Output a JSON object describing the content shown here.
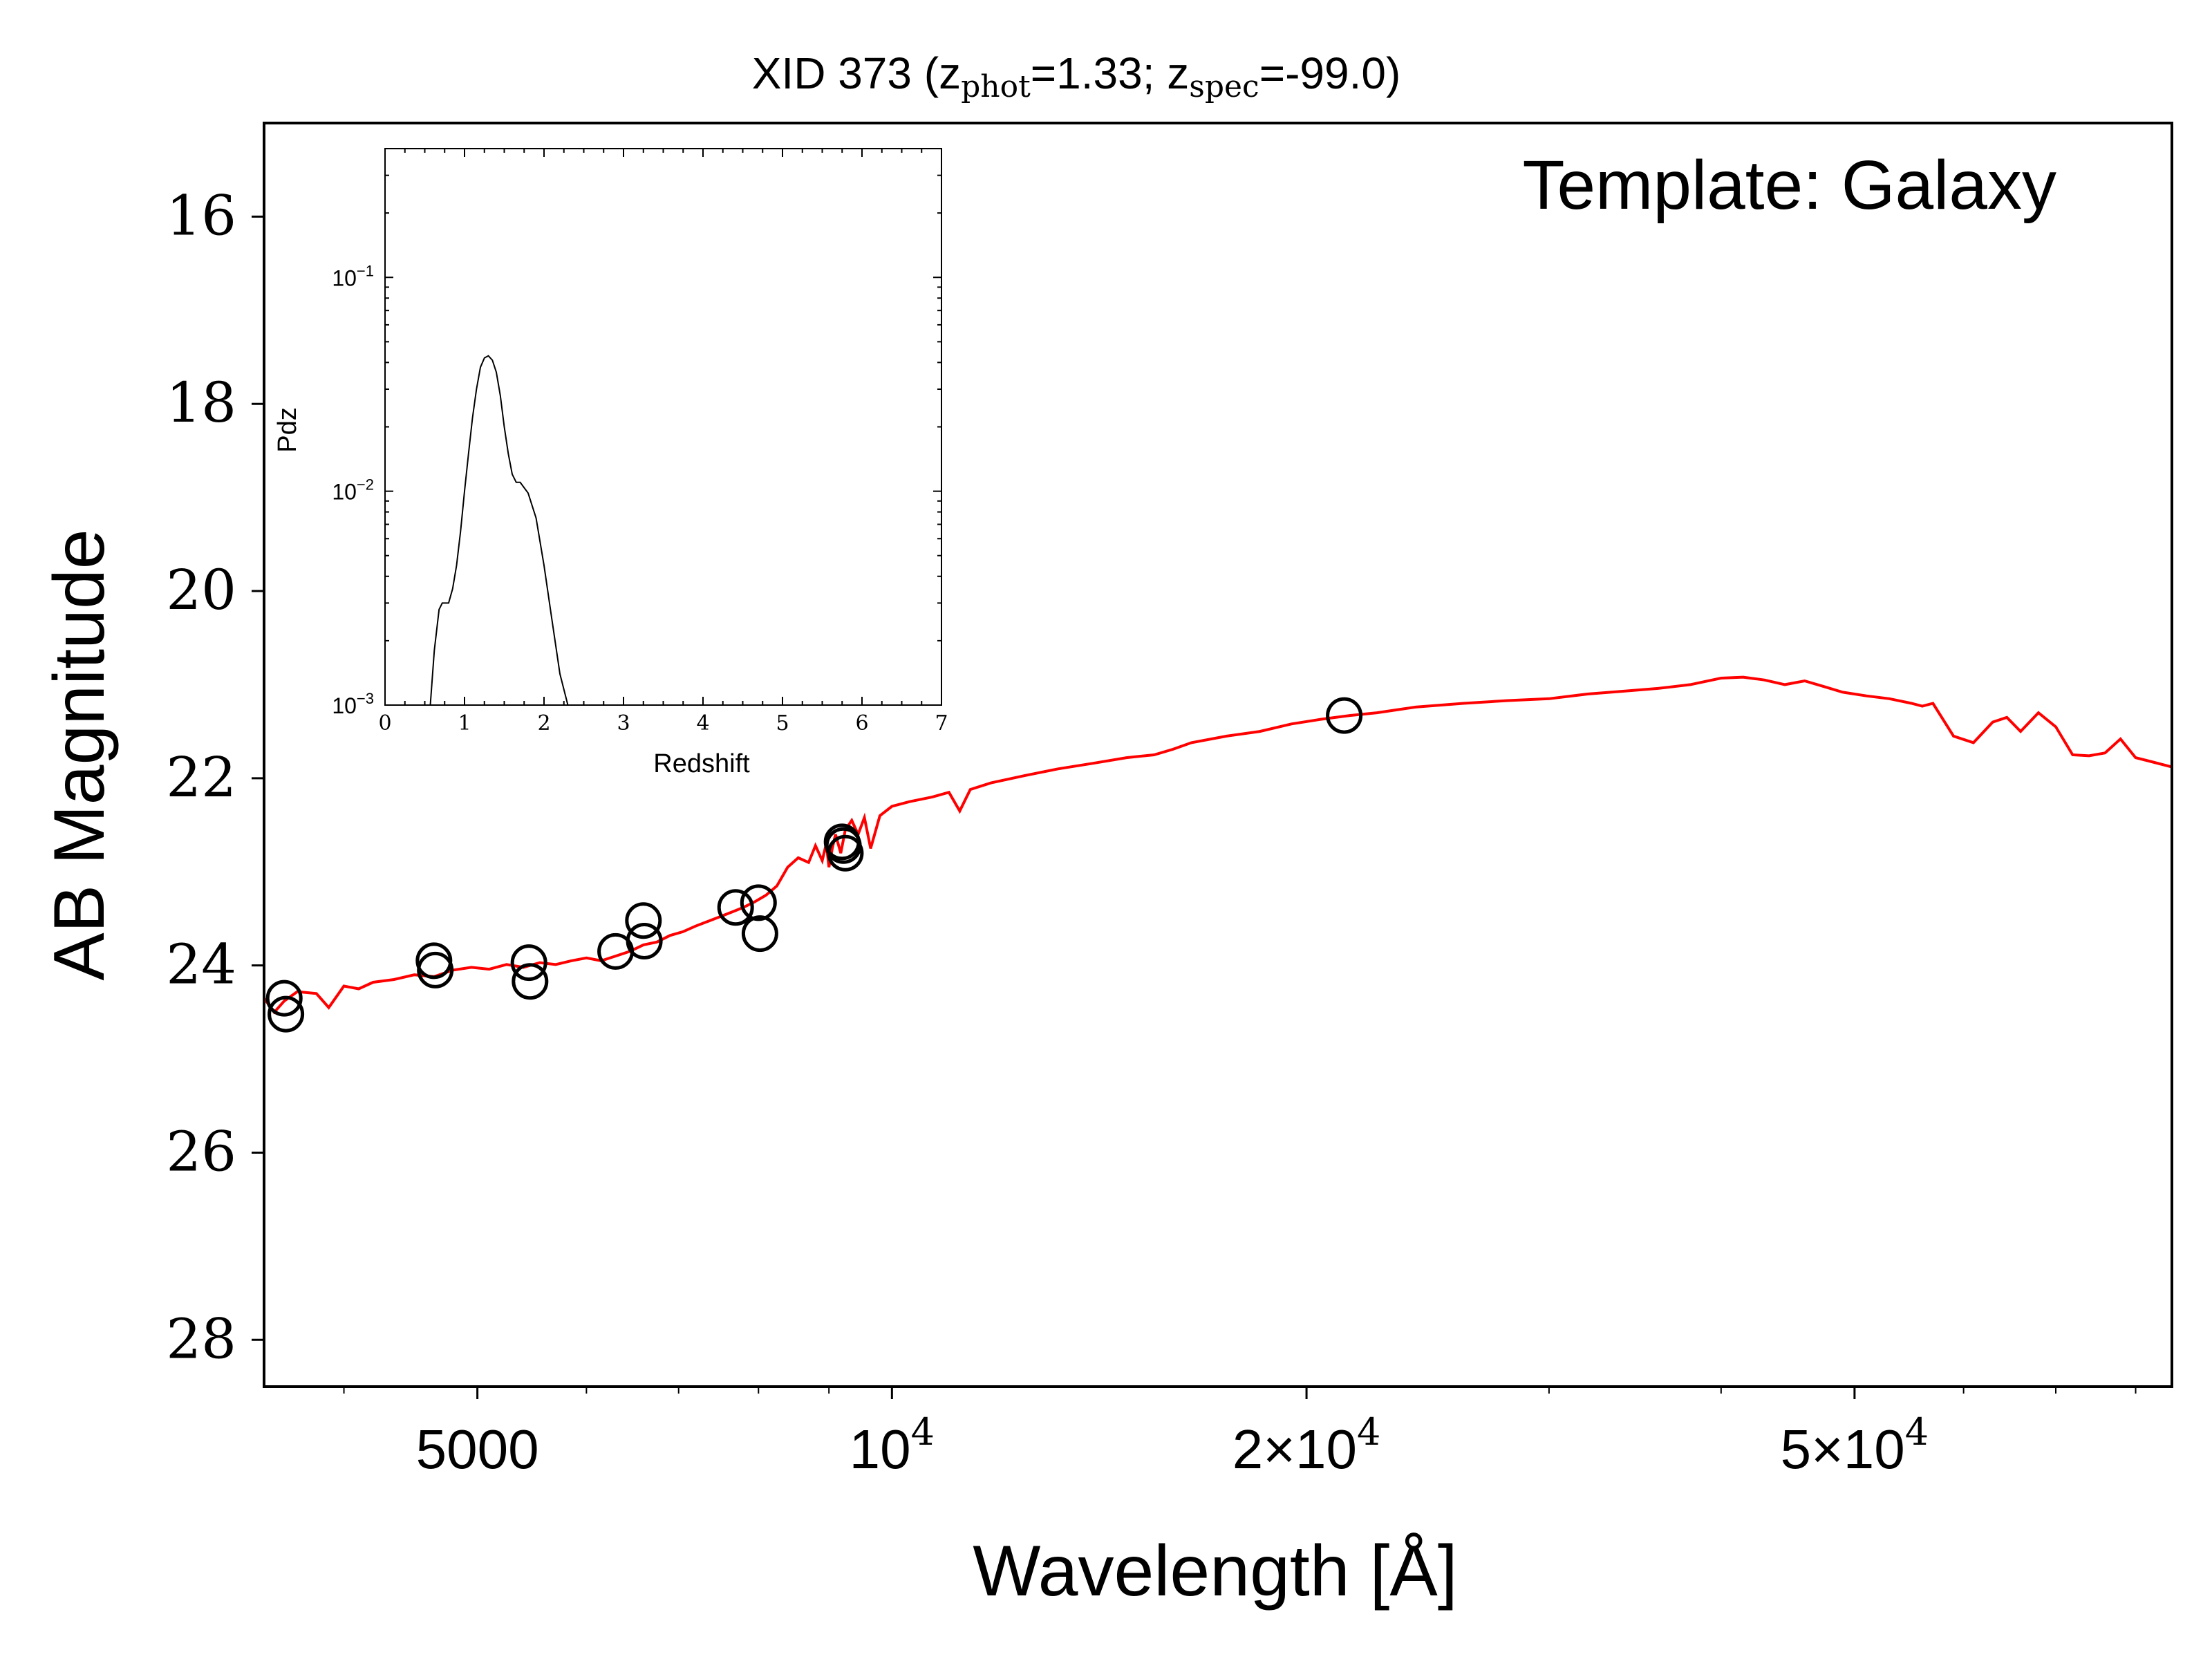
{
  "chart_data": [
    {
      "type": "line",
      "title": {
        "prefix": "XID 373 (z",
        "phot_sub": "phot",
        "phot_val": "=1.33; z",
        "spec_sub": "spec",
        "spec_val": "=-99.0)"
      },
      "annotation": "Template: Galaxy",
      "xlabel": "Wavelength [Å]",
      "ylabel": "AB Magnitude",
      "x_scale": "log",
      "xlim": [
        3500,
        85000
      ],
      "ylim": [
        28.5,
        15.0
      ],
      "y_inverted": true,
      "x_ticks": [
        {
          "value": 5000,
          "label": "5000"
        },
        {
          "value": 10000,
          "label": "10",
          "exp": "4"
        },
        {
          "value": 20000,
          "label": "2×10",
          "exp": "4"
        },
        {
          "value": 50000,
          "label": "5×10",
          "exp": "4"
        }
      ],
      "y_ticks": [
        16,
        18,
        20,
        22,
        24,
        26,
        28
      ],
      "colors": {
        "template": "#ff0000",
        "photometry": "#000000"
      },
      "series": [
        {
          "kind": "line",
          "x": [
            3500,
            3560,
            3620,
            3700,
            3820,
            3900,
            4000,
            4100,
            4200,
            4350,
            4500,
            4650,
            4800,
            4950,
            5100,
            5250,
            5400,
            5550,
            5700,
            5850,
            6000,
            6150,
            6300,
            6450,
            6600,
            6750,
            6900,
            7050,
            7200,
            7350,
            7500,
            7650,
            7800,
            7950,
            8100,
            8250,
            8400,
            8550,
            8700,
            8800,
            8900,
            8960,
            9000,
            9050,
            9100,
            9180,
            9250,
            9350,
            9450,
            9550,
            9650,
            9800,
            10000,
            10300,
            10700,
            11000,
            11200,
            11400,
            11800,
            12500,
            13200,
            14000,
            14800,
            15500,
            16000,
            16500,
            17500,
            18500,
            19500,
            20500,
            21500,
            22500,
            24000,
            26000,
            28000,
            30000,
            32000,
            34000,
            36000,
            38000,
            40000,
            41500,
            43000,
            44500,
            46000,
            47500,
            49000,
            51000,
            53000,
            55000,
            56000,
            57000,
            59000,
            61000,
            63000,
            64500,
            66000,
            68000,
            70000,
            72000,
            74000,
            76000,
            78000,
            80000,
            82000,
            85000
          ],
          "y": [
            24.35,
            24.5,
            24.38,
            24.28,
            24.3,
            24.45,
            24.22,
            24.25,
            24.18,
            24.15,
            24.1,
            24.12,
            24.05,
            24.02,
            24.04,
            23.99,
            24.02,
            23.97,
            23.99,
            23.95,
            23.92,
            23.95,
            23.9,
            23.85,
            23.78,
            23.75,
            23.68,
            23.64,
            23.58,
            23.53,
            23.48,
            23.43,
            23.38,
            23.32,
            23.25,
            23.15,
            22.95,
            22.85,
            22.9,
            22.72,
            22.88,
            22.7,
            22.95,
            22.75,
            22.6,
            22.8,
            22.55,
            22.45,
            22.6,
            22.42,
            22.75,
            22.4,
            22.3,
            22.25,
            22.2,
            22.15,
            22.35,
            22.12,
            22.05,
            21.97,
            21.9,
            21.84,
            21.78,
            21.75,
            21.69,
            21.62,
            21.55,
            21.5,
            21.42,
            21.37,
            21.33,
            21.3,
            21.24,
            21.2,
            21.17,
            21.15,
            21.1,
            21.07,
            21.04,
            21.0,
            20.93,
            20.92,
            20.95,
            21.0,
            20.96,
            21.02,
            21.08,
            21.12,
            21.15,
            21.2,
            21.23,
            21.2,
            21.55,
            21.62,
            21.4,
            21.35,
            21.5,
            21.3,
            21.45,
            21.75,
            21.76,
            21.73,
            21.58,
            21.78,
            21.82,
            21.88
          ]
        },
        {
          "kind": "scatter",
          "x": [
            3620,
            3630,
            4650,
            4660,
            5450,
            5460,
            6300,
            6600,
            6610,
            7700,
            8000,
            8020,
            9200,
            9220,
            9250,
            21300
          ],
          "y": [
            24.35,
            24.52,
            23.95,
            24.05,
            23.97,
            24.17,
            23.85,
            23.52,
            23.74,
            23.38,
            23.33,
            23.66,
            22.68,
            22.72,
            22.8,
            21.33
          ]
        }
      ]
    },
    {
      "type": "line",
      "xlabel": "Redshift",
      "ylabel": "Pdz",
      "x_scale": "linear",
      "y_scale": "log",
      "xlim": [
        0,
        7
      ],
      "ylim": [
        0.001,
        0.4
      ],
      "x_ticks": [
        0,
        1,
        2,
        3,
        4,
        5,
        6,
        7
      ],
      "y_ticks": [
        {
          "value": 0.1,
          "label": "10",
          "exp": "−1"
        },
        {
          "value": 0.01,
          "label": "10",
          "exp": "−2"
        },
        {
          "value": 0.001,
          "label": "10",
          "exp": "−3"
        }
      ],
      "series": [
        {
          "kind": "line",
          "x": [
            0.57,
            0.62,
            0.68,
            0.72,
            0.8,
            0.85,
            0.9,
            0.95,
            1.0,
            1.05,
            1.1,
            1.15,
            1.2,
            1.25,
            1.3,
            1.35,
            1.4,
            1.45,
            1.5,
            1.55,
            1.6,
            1.65,
            1.7,
            1.8,
            1.9,
            2.0,
            2.1,
            2.2,
            2.3
          ],
          "y": [
            0.001,
            0.0018,
            0.0028,
            0.003,
            0.003,
            0.0035,
            0.0045,
            0.0065,
            0.01,
            0.015,
            0.022,
            0.03,
            0.038,
            0.042,
            0.043,
            0.041,
            0.036,
            0.028,
            0.02,
            0.015,
            0.012,
            0.011,
            0.011,
            0.0098,
            0.0075,
            0.0045,
            0.0025,
            0.0014,
            0.001
          ]
        }
      ]
    }
  ]
}
